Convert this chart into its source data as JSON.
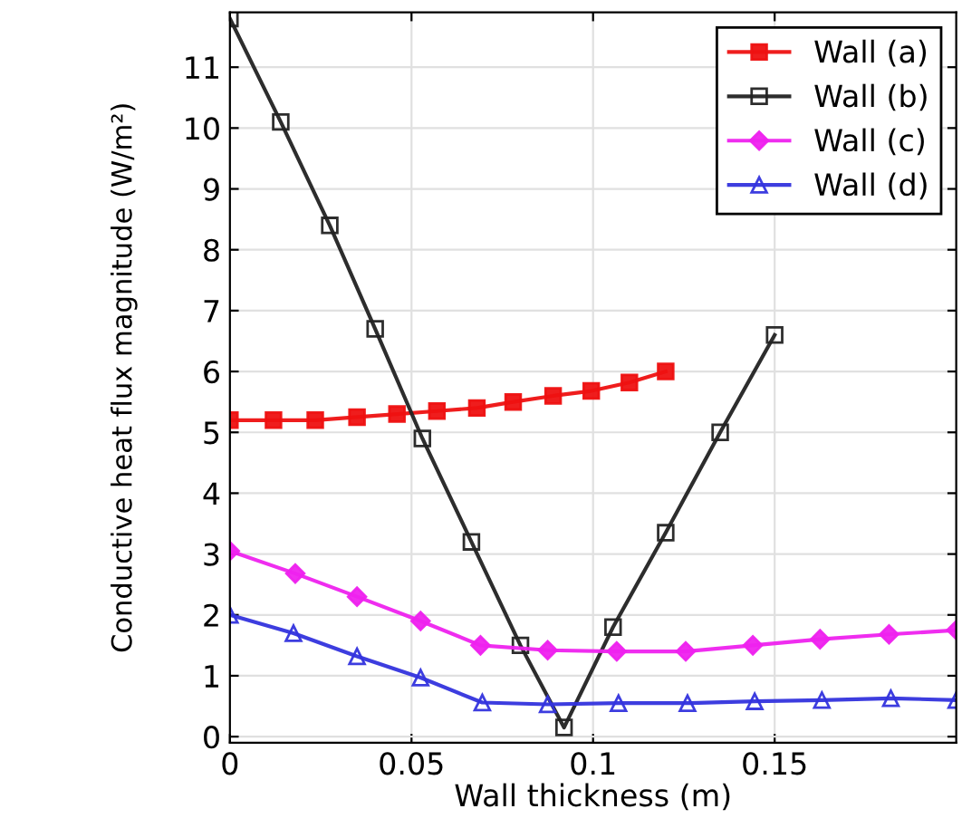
{
  "chart_data": {
    "type": "line",
    "xlabel": "Wall thickness (m)",
    "ylabel": "Conductive heat flux magnitude (W/m²)",
    "xlim": [
      0,
      0.2
    ],
    "xticks": [
      0,
      0.05,
      0.1,
      0.15
    ],
    "ylim": [
      -0.1,
      11.9
    ],
    "yticks": [
      0,
      1,
      2,
      3,
      4,
      5,
      6,
      7,
      8,
      9,
      10,
      11
    ],
    "grid": true,
    "legend": "top right",
    "series": [
      {
        "name": "Wall (a)",
        "color": "#ee1111",
        "marker": "square",
        "x": [
          0,
          0.012,
          0.0235,
          0.035,
          0.046,
          0.057,
          0.068,
          0.078,
          0.089,
          0.0995,
          0.11,
          0.12
        ],
        "values": [
          5.2,
          5.2,
          5.2,
          5.25,
          5.3,
          5.35,
          5.4,
          5.5,
          5.6,
          5.68,
          5.82,
          6.0
        ]
      },
      {
        "name": "Wall (b)",
        "color": "#222222",
        "marker": "square_open",
        "x": [
          0,
          0.014,
          0.0275,
          0.04,
          0.053,
          0.0665,
          0.08,
          0.092,
          0.1055,
          0.12,
          0.135,
          0.15
        ],
        "values": [
          11.8,
          10.1,
          8.4,
          6.7,
          4.9,
          3.2,
          1.5,
          0.15,
          1.8,
          3.35,
          5.0,
          6.6
        ]
      },
      {
        "name": "Wall (c)",
        "color": "#ee22ee",
        "marker": "diamond",
        "x": [
          0,
          0.018,
          0.035,
          0.0525,
          0.069,
          0.0875,
          0.1065,
          0.1255,
          0.144,
          0.1625,
          0.1815,
          0.2
        ],
        "values": [
          3.05,
          2.68,
          2.3,
          1.9,
          1.5,
          1.42,
          1.4,
          1.4,
          1.5,
          1.6,
          1.68,
          1.75
        ]
      },
      {
        "name": "Wall (d)",
        "color": "#3333dd",
        "marker": "triangle",
        "x": [
          0,
          0.0175,
          0.035,
          0.0525,
          0.0695,
          0.0875,
          0.107,
          0.126,
          0.1445,
          0.163,
          0.182,
          0.2
        ],
        "values": [
          2.0,
          1.7,
          1.32,
          0.97,
          0.56,
          0.53,
          0.55,
          0.55,
          0.58,
          0.6,
          0.63,
          0.6
        ]
      }
    ]
  }
}
